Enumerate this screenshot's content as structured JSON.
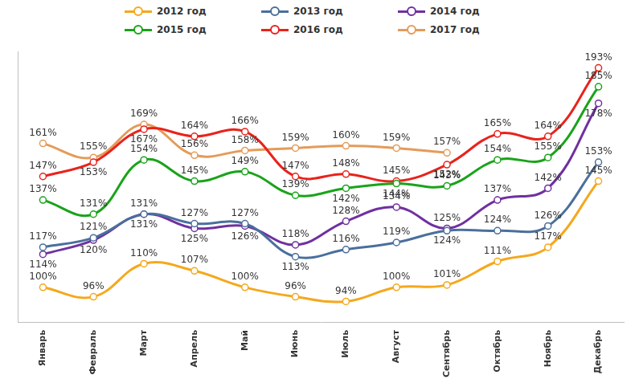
{
  "chart_data": {
    "type": "line",
    "categories": [
      "Январь",
      "Февраль",
      "Март",
      "Апрель",
      "Май",
      "Июнь",
      "Июль",
      "Август",
      "Сентябрь",
      "Октябрь",
      "Ноябрь",
      "Декабрь"
    ],
    "series": [
      {
        "name": "2012 год",
        "color": "#f5a81c",
        "values": [
          100,
          96,
          110,
          107,
          100,
          96,
          94,
          100,
          101,
          111,
          117,
          145
        ],
        "value_labels": [
          "100%",
          "96%",
          "110%",
          "107%",
          "100%",
          "96%",
          "94%",
          "100%",
          "101%",
          "111%",
          "117%",
          "145%"
        ]
      },
      {
        "name": "2013 год",
        "color": "#4a6f9c",
        "values": [
          117,
          121,
          131,
          127,
          127,
          113,
          116,
          119,
          124,
          124,
          126,
          153
        ],
        "value_labels": [
          "117%",
          "121%",
          "131%",
          "127%",
          "127%",
          "113%",
          "116%",
          "119%",
          "124%",
          "124%",
          "126%",
          "153%"
        ]
      },
      {
        "name": "2014 год",
        "color": "#7030a0",
        "values": [
          114,
          120,
          131,
          125,
          126,
          118,
          128,
          134,
          125,
          137,
          142,
          178
        ],
        "value_labels": [
          "114%",
          "120%",
          "131%",
          "125%",
          "126%",
          "118%",
          "128%",
          "134%",
          "125%",
          "137%",
          "142%",
          "178%"
        ]
      },
      {
        "name": "2015 год",
        "color": "#1aa31a",
        "values": [
          137,
          131,
          154,
          145,
          149,
          139,
          142,
          144,
          143,
          154,
          155,
          185
        ],
        "value_labels": [
          "137%",
          "131%",
          "154%",
          "145%",
          "149%",
          "139%",
          "142%",
          "144%",
          "143%",
          "154%",
          "155%",
          "185%"
        ]
      },
      {
        "name": "2016 год",
        "color": "#e8231c",
        "values": [
          147,
          153,
          167,
          164,
          166,
          147,
          148,
          145,
          152,
          165,
          164,
          193
        ],
        "value_labels": [
          "147%",
          "153%",
          "167%",
          "164%",
          "166%",
          "147%",
          "148%",
          "145%",
          "152%",
          "165%",
          "164%",
          "193%"
        ]
      },
      {
        "name": "2017 год",
        "color": "#e49b5a",
        "values": [
          161,
          155,
          169,
          156,
          158,
          159,
          160,
          159,
          157,
          null,
          null,
          null
        ],
        "value_labels": [
          "161%",
          "155%",
          "169%",
          "156%",
          "158%",
          "159%",
          "160%",
          "159%",
          "157%",
          null,
          null,
          null
        ]
      }
    ],
    "ylim": [
      85,
      200
    ],
    "yticks": [],
    "grid": false,
    "legend": "top",
    "data_labels": true,
    "tick_labels": "x",
    "marker": "circle",
    "line_style": "solid"
  }
}
